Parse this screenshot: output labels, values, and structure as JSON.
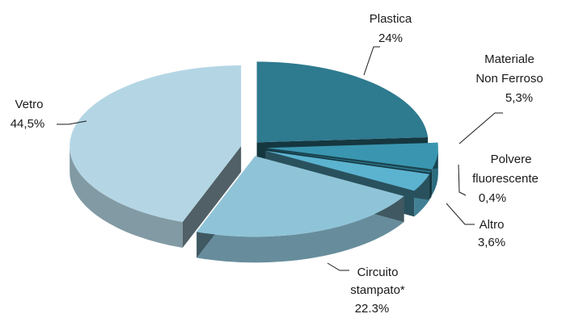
{
  "chart_data": {
    "type": "pie",
    "style": "3d-exploded",
    "legend": "none",
    "slices": [
      {
        "name": "Plastica",
        "value": 24,
        "label": "24%",
        "color": "#2e7a8f"
      },
      {
        "name": "Materiale Non Ferroso",
        "value": 5.3,
        "label": "5,3%",
        "color": "#3a96b0"
      },
      {
        "name": "Polvere fluorescente",
        "value": 0.4,
        "label": "0,4%",
        "color": "#2b6f85"
      },
      {
        "name": "Altro",
        "value": 3.6,
        "label": "3,6%",
        "color": "#5bb3cf"
      },
      {
        "name": "Circuito stampato*",
        "value": 22.3,
        "label": "22.3%",
        "color": "#8fc4d8"
      },
      {
        "name": "Vetro",
        "value": 44.5,
        "label": "44,5%",
        "color": "#b4d6e4"
      }
    ]
  }
}
